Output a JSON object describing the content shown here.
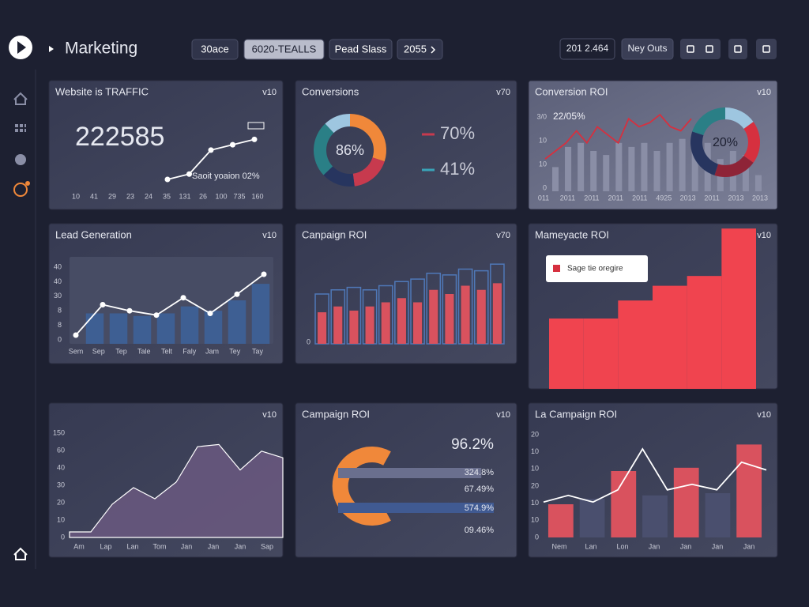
{
  "header": {
    "title": "Marketing",
    "tabs": [
      "30ace",
      "6020-TEALLS",
      "Pead Slass",
      "2055"
    ],
    "actions": [
      "201 2.464",
      "Ney Outs"
    ]
  },
  "panels": [
    {
      "title": "Website is TRAFFIC",
      "badge": "v10",
      "kpi": "222585",
      "note": "Saoit yoaion 02%",
      "xlabels": [
        "10",
        "41",
        "29",
        "23",
        "24",
        "35",
        "131",
        "26",
        "100",
        "735",
        "160"
      ],
      "chart": {
        "type": "line",
        "values": [
          0,
          1,
          5.5,
          6.5,
          7.5
        ],
        "ylim": [
          0,
          8
        ],
        "color": "#ffffff"
      }
    },
    {
      "title": "Conversions",
      "badge": "v70",
      "kpi": "86%",
      "legend": [
        {
          "label": "70%",
          "color": "#c73a4e"
        },
        {
          "label": "41%",
          "color": "#3aa4b8"
        }
      ],
      "chart": {
        "type": "pie",
        "values": [
          30,
          18,
          15,
          25,
          12
        ],
        "colors": [
          "#f0883a",
          "#c73a4e",
          "#27355f",
          "#2a7f86",
          "#9ec6e0"
        ]
      }
    },
    {
      "title": "Conversion ROI",
      "badge": "v10",
      "kpi": "22/05%",
      "ylabels": [
        "3/0",
        "10",
        "10",
        "0"
      ],
      "xlabels": [
        "011",
        "2011",
        "2011",
        "2011",
        "2011",
        "4925",
        "2013",
        "2011",
        "2013",
        "2013"
      ],
      "chart": {
        "type": "bar-line",
        "bars": [
          3,
          5.5,
          6,
          5,
          4.5,
          6,
          5.5,
          6,
          5,
          6,
          6.5,
          5.5,
          6,
          4,
          5,
          4.5,
          2
        ],
        "line": [
          4,
          5,
          6,
          7.5,
          6,
          8,
          7,
          6,
          9,
          8,
          8.5,
          9.5,
          8,
          7.5,
          9
        ],
        "ylim": [
          0,
          10
        ],
        "bar_color": "#8a8ea6",
        "line_color": "#d6303f"
      },
      "donut": {
        "kpi": "20%",
        "values": [
          15,
          20,
          20,
          25,
          20
        ],
        "colors": [
          "#9ec6e0",
          "#d6303f",
          "#8e2437",
          "#27355f",
          "#2a7f86"
        ]
      }
    },
    {
      "title": "Lead Generation",
      "badge": "v10",
      "ylabels": [
        "40",
        "40",
        "30",
        "8",
        "8",
        "0"
      ],
      "xlabels": [
        "Sem",
        "Sep",
        "Tep",
        "Tale",
        "Telt",
        "Faly",
        "Jam",
        "Tey",
        "Tay"
      ],
      "chart": {
        "type": "bar-line",
        "bars": [
          3.5,
          3.5,
          3.2,
          3.5,
          4.3,
          3.8,
          5,
          6.9
        ],
        "line": [
          1,
          4.5,
          3.8,
          3.3,
          5.3,
          3.5,
          5.7,
          8
        ],
        "ylim": [
          0,
          10
        ],
        "bar_color": "#3e5f93",
        "line_color": "#ffffff"
      }
    },
    {
      "title": "Canpaign ROI",
      "badge": "v70",
      "ylabels": [
        "0"
      ],
      "chart": {
        "type": "grouped-bar",
        "series": [
          {
            "color": "#4f78b8",
            "values": [
              6,
              6.5,
              6.8,
              6.5,
              7,
              7.5,
              7.8,
              8.5,
              8.3,
              9,
              8.8,
              9.6
            ]
          },
          {
            "color": "#d9525e",
            "values": [
              3.8,
              4.5,
              4,
              4.5,
              5,
              5.5,
              5,
              6.5,
              6,
              7,
              6.5,
              7.3
            ]
          }
        ],
        "ylim": [
          0,
          10
        ]
      }
    },
    {
      "title": "Mameyacte ROI",
      "badge": "v10",
      "tooltip": "Sage tie oregire",
      "chart": {
        "type": "bar",
        "values": [
          4.3,
          4.3,
          5.4,
          6.3,
          6.9,
          9.8
        ],
        "ylim": [
          0,
          10
        ],
        "color": "#f0444f"
      }
    },
    {
      "badge": "v10",
      "ylabels": [
        "150",
        "60",
        "40",
        "30",
        "20",
        "10",
        "0"
      ],
      "xlabels": [
        "Am",
        "Lap",
        "Lan",
        "Tom",
        "Jan",
        "Jan",
        "Jan",
        "Sap"
      ],
      "chart": {
        "type": "area",
        "values": [
          0.5,
          0.5,
          3,
          4.5,
          3.5,
          5,
          8.2,
          8.4,
          6.1,
          7.8,
          7.2
        ],
        "ylim": [
          0,
          10
        ],
        "color": "#6d5a82"
      }
    },
    {
      "title": "Campaign ROI",
      "badge": "v10",
      "kpi": "96.2%",
      "labels": [
        "324.8%",
        "67.49%",
        "574.9%",
        "09.46%"
      ],
      "chart": {
        "type": "hbar",
        "values": [
          9.2,
          10
        ],
        "xlim": [
          0,
          10
        ],
        "colors": [
          "#6a6f8e",
          "#405a92"
        ]
      }
    },
    {
      "title": "La Campaign ROI",
      "badge": "v10",
      "ylabels": [
        "20",
        "10",
        "10",
        "20",
        "10",
        "10",
        "0"
      ],
      "xlabels": [
        "Nem",
        "Lan",
        "Lon",
        "Jan",
        "Jan",
        "Jan",
        "Jan"
      ],
      "chart": {
        "type": "bar-line",
        "bars": [
          3,
          3.5,
          6,
          3.8,
          6.3,
          4,
          8.4
        ],
        "line": [
          3.2,
          3.8,
          3.2,
          4.3,
          8,
          4.3,
          4.8,
          4.3,
          6.8,
          6.1
        ],
        "ylim": [
          0,
          10
        ],
        "bar_colors": [
          "#d9525e",
          "#4a4f6e",
          "#d9525e",
          "#4a4f6e",
          "#d9525e",
          "#4a4f6e",
          "#d9525e"
        ],
        "line_color": "#ffffff"
      }
    }
  ]
}
